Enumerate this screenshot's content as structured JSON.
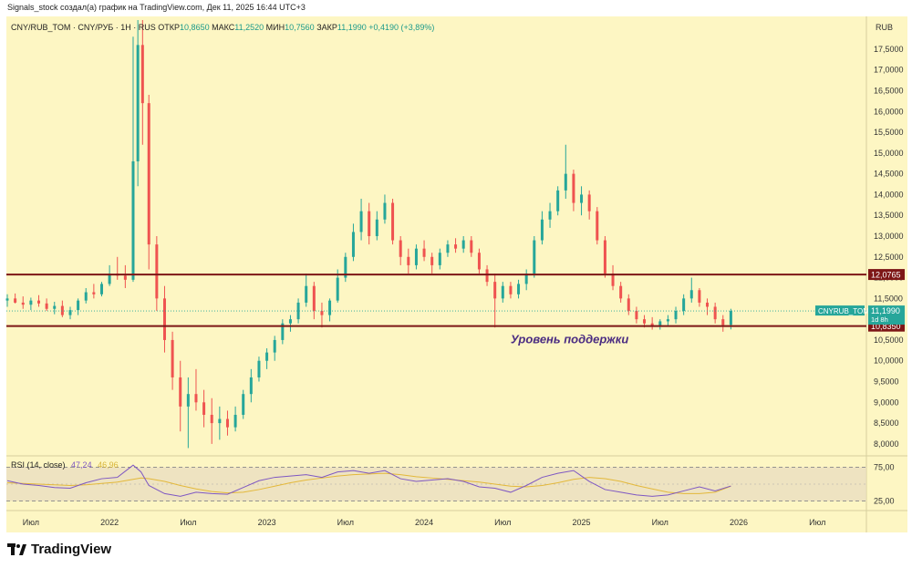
{
  "caption": "Signals_stock создал(а) график на TradingView.com, Дек 11, 2025 16:44 UTC+3",
  "legend": {
    "symbol": "CNY/RUB_TOM · CNY/РУБ · 1Н · RUS",
    "open_label": "ОТКР",
    "open": "10,8650",
    "high_label": "МАКС",
    "high": "11,2520",
    "low_label": "МИН",
    "low": "10,7560",
    "close_label": "ЗАКР",
    "close": "11,1990",
    "change": "+0,4190 (+3,89%)"
  },
  "rsi_legend": {
    "label": "RSI (14, close)",
    "value": "47,24",
    "ma": "46,96"
  },
  "logo_text": "TradingView",
  "colors": {
    "up": "#26a69a",
    "down": "#ef5350",
    "level": "#7d1616",
    "rsi": "#7e57c2",
    "rsi_ma": "#e3b83a",
    "annotation": "#4a2c82",
    "background": "#fdf6c3"
  },
  "chart_data": {
    "type": "candlestick",
    "title": "CNY/RUB_TOM · CNY/РУБ · 1Н · RUS",
    "currency_label": "RUB",
    "y_min": 7.8,
    "y_max": 18.2,
    "y_ticks": [
      8,
      8.5,
      9,
      9.5,
      10,
      10.5,
      11,
      11.5,
      12,
      12.5,
      13,
      13.5,
      14,
      14.5,
      15,
      15.5,
      16,
      16.5,
      17,
      17.5
    ],
    "y_tick_labels": [
      "8,0000",
      "8,5000",
      "9,0000",
      "9,5000",
      "10,0000",
      "10,5000",
      "11,0000",
      "11,5000",
      "12,0000",
      "12,5000",
      "13,0000",
      "13,5000",
      "14,0000",
      "14,5000",
      "15,0000",
      "15,5000",
      "16,0000",
      "16,5000",
      "17,0000",
      "17,5000"
    ],
    "x_range": [
      2021.35,
      2026.8
    ],
    "x_ticks": [
      2021.5,
      2022.0,
      2022.5,
      2023.0,
      2023.5,
      2024.0,
      2024.5,
      2025.0,
      2025.5,
      2026.0,
      2026.5
    ],
    "x_tick_labels": [
      "Июл",
      "2022",
      "Июл",
      "2023",
      "Июл",
      "2024",
      "Июл",
      "2025",
      "Июл",
      "2026",
      "Июл"
    ],
    "candles": [
      {
        "t": 2021.35,
        "o": 11.45,
        "h": 11.6,
        "l": 11.3,
        "c": 11.5
      },
      {
        "t": 2021.4,
        "o": 11.5,
        "h": 11.62,
        "l": 11.38,
        "c": 11.4
      },
      {
        "t": 2021.45,
        "o": 11.4,
        "h": 11.55,
        "l": 11.25,
        "c": 11.35
      },
      {
        "t": 2021.5,
        "o": 11.35,
        "h": 11.52,
        "l": 11.22,
        "c": 11.45
      },
      {
        "t": 2021.55,
        "o": 11.45,
        "h": 11.58,
        "l": 11.3,
        "c": 11.38
      },
      {
        "t": 2021.6,
        "o": 11.38,
        "h": 11.5,
        "l": 11.2,
        "c": 11.25
      },
      {
        "t": 2021.65,
        "o": 11.25,
        "h": 11.42,
        "l": 11.12,
        "c": 11.32
      },
      {
        "t": 2021.7,
        "o": 11.32,
        "h": 11.45,
        "l": 11.05,
        "c": 11.1
      },
      {
        "t": 2021.75,
        "o": 11.1,
        "h": 11.3,
        "l": 11.0,
        "c": 11.22
      },
      {
        "t": 2021.8,
        "o": 11.22,
        "h": 11.5,
        "l": 11.1,
        "c": 11.45
      },
      {
        "t": 2021.85,
        "o": 11.45,
        "h": 11.75,
        "l": 11.38,
        "c": 11.65
      },
      {
        "t": 2021.9,
        "o": 11.65,
        "h": 11.85,
        "l": 11.5,
        "c": 11.6
      },
      {
        "t": 2021.95,
        "o": 11.6,
        "h": 11.9,
        "l": 11.55,
        "c": 11.85
      },
      {
        "t": 2022.0,
        "o": 11.85,
        "h": 12.3,
        "l": 11.8,
        "c": 12.1
      },
      {
        "t": 2022.05,
        "o": 12.1,
        "h": 12.5,
        "l": 11.95,
        "c": 12.05
      },
      {
        "t": 2022.1,
        "o": 12.05,
        "h": 12.3,
        "l": 11.75,
        "c": 11.95
      },
      {
        "t": 2022.15,
        "o": 11.95,
        "h": 17.8,
        "l": 11.9,
        "c": 14.8
      },
      {
        "t": 2022.18,
        "o": 14.8,
        "h": 18.2,
        "l": 14.2,
        "c": 17.6
      },
      {
        "t": 2022.21,
        "o": 17.6,
        "h": 18.2,
        "l": 15.2,
        "c": 16.2
      },
      {
        "t": 2022.25,
        "o": 16.2,
        "h": 16.4,
        "l": 12.2,
        "c": 12.8
      },
      {
        "t": 2022.3,
        "o": 12.8,
        "h": 13.0,
        "l": 11.2,
        "c": 11.5
      },
      {
        "t": 2022.35,
        "o": 11.5,
        "h": 11.8,
        "l": 10.2,
        "c": 10.5
      },
      {
        "t": 2022.4,
        "o": 10.5,
        "h": 10.7,
        "l": 9.3,
        "c": 9.6
      },
      {
        "t": 2022.45,
        "o": 9.6,
        "h": 10.0,
        "l": 8.3,
        "c": 8.9
      },
      {
        "t": 2022.5,
        "o": 8.9,
        "h": 9.6,
        "l": 7.9,
        "c": 9.2
      },
      {
        "t": 2022.55,
        "o": 9.2,
        "h": 9.8,
        "l": 8.8,
        "c": 9.0
      },
      {
        "t": 2022.6,
        "o": 9.0,
        "h": 9.3,
        "l": 8.4,
        "c": 8.7
      },
      {
        "t": 2022.65,
        "o": 8.7,
        "h": 9.1,
        "l": 8.0,
        "c": 8.5
      },
      {
        "t": 2022.7,
        "o": 8.5,
        "h": 8.9,
        "l": 8.1,
        "c": 8.6
      },
      {
        "t": 2022.75,
        "o": 8.6,
        "h": 8.8,
        "l": 8.2,
        "c": 8.4
      },
      {
        "t": 2022.8,
        "o": 8.4,
        "h": 8.9,
        "l": 8.3,
        "c": 8.7
      },
      {
        "t": 2022.85,
        "o": 8.7,
        "h": 9.3,
        "l": 8.6,
        "c": 9.2
      },
      {
        "t": 2022.9,
        "o": 9.2,
        "h": 9.8,
        "l": 9.0,
        "c": 9.6
      },
      {
        "t": 2022.95,
        "o": 9.6,
        "h": 10.1,
        "l": 9.5,
        "c": 10.0
      },
      {
        "t": 2023.0,
        "o": 10.0,
        "h": 10.3,
        "l": 9.8,
        "c": 10.2
      },
      {
        "t": 2023.05,
        "o": 10.2,
        "h": 10.6,
        "l": 10.0,
        "c": 10.5
      },
      {
        "t": 2023.1,
        "o": 10.5,
        "h": 11.0,
        "l": 10.4,
        "c": 10.9
      },
      {
        "t": 2023.15,
        "o": 10.9,
        "h": 11.1,
        "l": 10.7,
        "c": 11.0
      },
      {
        "t": 2023.2,
        "o": 11.0,
        "h": 11.5,
        "l": 10.9,
        "c": 11.4
      },
      {
        "t": 2023.25,
        "o": 11.4,
        "h": 12.1,
        "l": 11.3,
        "c": 11.8
      },
      {
        "t": 2023.3,
        "o": 11.8,
        "h": 11.9,
        "l": 11.0,
        "c": 11.2
      },
      {
        "t": 2023.35,
        "o": 11.2,
        "h": 11.4,
        "l": 10.8,
        "c": 11.1
      },
      {
        "t": 2023.4,
        "o": 11.1,
        "h": 11.5,
        "l": 10.95,
        "c": 11.45
      },
      {
        "t": 2023.45,
        "o": 11.45,
        "h": 12.2,
        "l": 11.4,
        "c": 12.0
      },
      {
        "t": 2023.5,
        "o": 12.0,
        "h": 12.6,
        "l": 11.9,
        "c": 12.5
      },
      {
        "t": 2023.55,
        "o": 12.5,
        "h": 13.3,
        "l": 12.4,
        "c": 13.1
      },
      {
        "t": 2023.6,
        "o": 13.1,
        "h": 13.9,
        "l": 12.9,
        "c": 13.6
      },
      {
        "t": 2023.65,
        "o": 13.6,
        "h": 13.8,
        "l": 12.8,
        "c": 13.0
      },
      {
        "t": 2023.7,
        "o": 13.0,
        "h": 13.6,
        "l": 12.9,
        "c": 13.4
      },
      {
        "t": 2023.75,
        "o": 13.4,
        "h": 14.0,
        "l": 13.3,
        "c": 13.8
      },
      {
        "t": 2023.8,
        "o": 13.8,
        "h": 13.9,
        "l": 12.8,
        "c": 12.9
      },
      {
        "t": 2023.85,
        "o": 12.9,
        "h": 13.0,
        "l": 12.3,
        "c": 12.5
      },
      {
        "t": 2023.9,
        "o": 12.5,
        "h": 12.7,
        "l": 12.1,
        "c": 12.3
      },
      {
        "t": 2023.95,
        "o": 12.3,
        "h": 12.8,
        "l": 12.2,
        "c": 12.7
      },
      {
        "t": 2024.0,
        "o": 12.7,
        "h": 12.9,
        "l": 12.4,
        "c": 12.5
      },
      {
        "t": 2024.05,
        "o": 12.5,
        "h": 12.6,
        "l": 12.1,
        "c": 12.3
      },
      {
        "t": 2024.1,
        "o": 12.3,
        "h": 12.7,
        "l": 12.2,
        "c": 12.6
      },
      {
        "t": 2024.15,
        "o": 12.6,
        "h": 12.9,
        "l": 12.5,
        "c": 12.8
      },
      {
        "t": 2024.2,
        "o": 12.8,
        "h": 12.95,
        "l": 12.6,
        "c": 12.7
      },
      {
        "t": 2024.25,
        "o": 12.7,
        "h": 13.0,
        "l": 12.6,
        "c": 12.9
      },
      {
        "t": 2024.3,
        "o": 12.9,
        "h": 13.0,
        "l": 12.5,
        "c": 12.6
      },
      {
        "t": 2024.35,
        "o": 12.6,
        "h": 12.7,
        "l": 12.1,
        "c": 12.2
      },
      {
        "t": 2024.4,
        "o": 12.2,
        "h": 12.3,
        "l": 11.8,
        "c": 11.9
      },
      {
        "t": 2024.45,
        "o": 11.9,
        "h": 12.1,
        "l": 10.8,
        "c": 11.5
      },
      {
        "t": 2024.5,
        "o": 11.5,
        "h": 11.9,
        "l": 11.4,
        "c": 11.8
      },
      {
        "t": 2024.55,
        "o": 11.8,
        "h": 11.9,
        "l": 11.5,
        "c": 11.6
      },
      {
        "t": 2024.6,
        "o": 11.6,
        "h": 11.95,
        "l": 11.5,
        "c": 11.85
      },
      {
        "t": 2024.65,
        "o": 11.85,
        "h": 12.2,
        "l": 11.7,
        "c": 12.1
      },
      {
        "t": 2024.7,
        "o": 12.1,
        "h": 13.0,
        "l": 12.0,
        "c": 12.9
      },
      {
        "t": 2024.75,
        "o": 12.9,
        "h": 13.6,
        "l": 12.8,
        "c": 13.4
      },
      {
        "t": 2024.8,
        "o": 13.4,
        "h": 13.8,
        "l": 13.2,
        "c": 13.6
      },
      {
        "t": 2024.85,
        "o": 13.6,
        "h": 14.2,
        "l": 13.5,
        "c": 14.1
      },
      {
        "t": 2024.9,
        "o": 14.1,
        "h": 15.2,
        "l": 13.9,
        "c": 14.5
      },
      {
        "t": 2024.95,
        "o": 14.5,
        "h": 14.6,
        "l": 13.6,
        "c": 13.8
      },
      {
        "t": 2025.0,
        "o": 13.8,
        "h": 14.2,
        "l": 13.5,
        "c": 14.0
      },
      {
        "t": 2025.05,
        "o": 14.0,
        "h": 14.1,
        "l": 13.4,
        "c": 13.6
      },
      {
        "t": 2025.1,
        "o": 13.6,
        "h": 13.7,
        "l": 12.8,
        "c": 12.9
      },
      {
        "t": 2025.15,
        "o": 12.9,
        "h": 13.0,
        "l": 12.0,
        "c": 12.1
      },
      {
        "t": 2025.2,
        "o": 12.1,
        "h": 12.3,
        "l": 11.7,
        "c": 11.8
      },
      {
        "t": 2025.25,
        "o": 11.8,
        "h": 11.9,
        "l": 11.4,
        "c": 11.5
      },
      {
        "t": 2025.3,
        "o": 11.5,
        "h": 11.6,
        "l": 11.1,
        "c": 11.2
      },
      {
        "t": 2025.35,
        "o": 11.2,
        "h": 11.3,
        "l": 10.9,
        "c": 11.0
      },
      {
        "t": 2025.4,
        "o": 11.0,
        "h": 11.1,
        "l": 10.8,
        "c": 10.9
      },
      {
        "t": 2025.45,
        "o": 10.9,
        "h": 11.05,
        "l": 10.75,
        "c": 10.85
      },
      {
        "t": 2025.5,
        "o": 10.85,
        "h": 11.0,
        "l": 10.75,
        "c": 10.95
      },
      {
        "t": 2025.55,
        "o": 10.95,
        "h": 11.1,
        "l": 10.85,
        "c": 11.0
      },
      {
        "t": 2025.6,
        "o": 11.0,
        "h": 11.3,
        "l": 10.9,
        "c": 11.2
      },
      {
        "t": 2025.65,
        "o": 11.2,
        "h": 11.6,
        "l": 11.1,
        "c": 11.5
      },
      {
        "t": 2025.7,
        "o": 11.5,
        "h": 12.0,
        "l": 11.4,
        "c": 11.7
      },
      {
        "t": 2025.75,
        "o": 11.7,
        "h": 11.75,
        "l": 11.3,
        "c": 11.4
      },
      {
        "t": 2025.8,
        "o": 11.4,
        "h": 11.5,
        "l": 11.1,
        "c": 11.3
      },
      {
        "t": 2025.85,
        "o": 11.3,
        "h": 11.4,
        "l": 10.9,
        "c": 11.0
      },
      {
        "t": 2025.9,
        "o": 11.0,
        "h": 11.1,
        "l": 10.7,
        "c": 10.86
      },
      {
        "t": 2025.95,
        "o": 10.865,
        "h": 11.252,
        "l": 10.756,
        "c": 11.199
      }
    ],
    "levels": [
      {
        "value": 12.0765,
        "label": "12,0765"
      },
      {
        "value": 10.835,
        "label": "10,8350"
      }
    ],
    "last_price": {
      "value": 11.199,
      "symbol": "CNYRUB_TOM",
      "label": "11,1990",
      "countdown": "1d 8h"
    },
    "annotation": {
      "text": "Уровень поддержки",
      "t": 2024.55,
      "y": 10.6
    },
    "rsi": {
      "y_range": [
        15,
        85
      ],
      "ticks": [
        25,
        75
      ],
      "tick_labels": [
        "25,00",
        "75,00"
      ],
      "t": [
        2021.35,
        2021.45,
        2021.55,
        2021.65,
        2021.75,
        2021.85,
        2021.95,
        2022.05,
        2022.15,
        2022.2,
        2022.25,
        2022.35,
        2022.45,
        2022.55,
        2022.65,
        2022.75,
        2022.85,
        2022.95,
        2023.05,
        2023.15,
        2023.25,
        2023.35,
        2023.45,
        2023.55,
        2023.65,
        2023.75,
        2023.85,
        2023.95,
        2024.05,
        2024.15,
        2024.25,
        2024.35,
        2024.45,
        2024.55,
        2024.65,
        2024.75,
        2024.85,
        2024.95,
        2025.05,
        2025.15,
        2025.25,
        2025.35,
        2025.45,
        2025.55,
        2025.65,
        2025.75,
        2025.85,
        2025.95
      ],
      "values": [
        55,
        50,
        48,
        45,
        44,
        52,
        58,
        60,
        78,
        68,
        48,
        36,
        32,
        38,
        36,
        35,
        45,
        55,
        60,
        62,
        64,
        60,
        68,
        70,
        66,
        70,
        58,
        54,
        56,
        58,
        54,
        46,
        44,
        38,
        48,
        60,
        66,
        70,
        54,
        42,
        38,
        34,
        32,
        34,
        40,
        46,
        40,
        47.24
      ],
      "ma": [
        52,
        51,
        50,
        49,
        48,
        49,
        51,
        53,
        57,
        59,
        58,
        54,
        48,
        43,
        39,
        37,
        38,
        42,
        47,
        52,
        56,
        59,
        62,
        64,
        65,
        66,
        64,
        61,
        59,
        57,
        55,
        53,
        50,
        47,
        46,
        48,
        52,
        57,
        60,
        58,
        54,
        48,
        43,
        38,
        36,
        36,
        38,
        46.96
      ]
    }
  }
}
